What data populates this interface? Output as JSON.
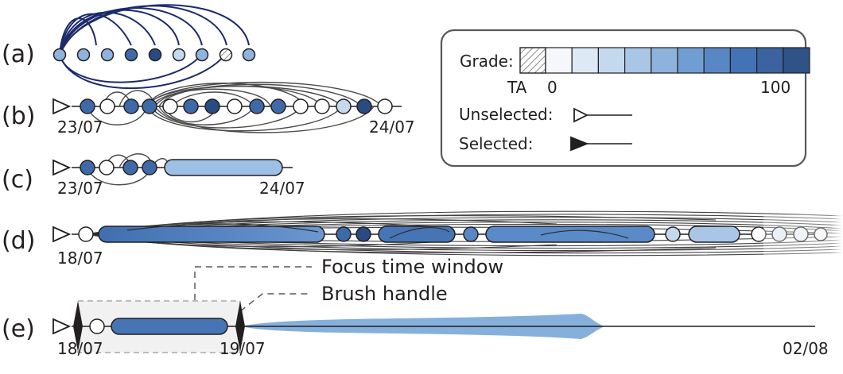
{
  "panels": [
    {
      "label": "(a)"
    },
    {
      "label": "(b)",
      "start_date": "23/07",
      "end_date": "24/07"
    },
    {
      "label": "(c)",
      "start_date": "23/07",
      "end_date": "24/07"
    },
    {
      "label": "(d)",
      "start_date": "18/07"
    },
    {
      "label": "(e)",
      "start_date": "18/07",
      "mid_date": "19/07",
      "end_date": "02/08"
    }
  ],
  "legend": {
    "grade_label": "Grade:",
    "ta_label": "TA",
    "min_label": "0",
    "max_label": "100",
    "unselected_label": "Unselected:",
    "selected_label": "Selected:",
    "grade_colors": [
      "#f4f8fd",
      "#dde9f5",
      "#c4d9ee",
      "#a9c6e6",
      "#8db2dc",
      "#719ed2",
      "#5887c4",
      "#4473b5",
      "#3a63a0",
      "#2f5287"
    ]
  },
  "annotations": {
    "focus_window": "Focus time window",
    "brush_handle": "Brush handle"
  },
  "colors": {
    "ta_fill": "#8eb3dd",
    "dark_blue": "#3e6aa8",
    "arc_dark": "#1d2a6b",
    "band_blue": "#86b0dc"
  }
}
